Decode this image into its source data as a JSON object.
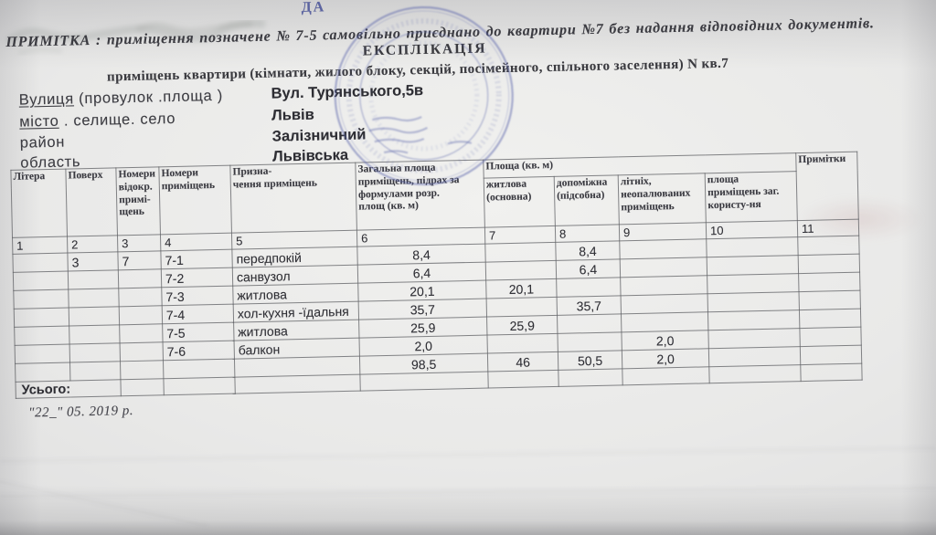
{
  "note": "ПРИМІТКА : приміщення позначене № 7-5 самовільно приєднано до квартири №7 без надання відповідних документів.",
  "title": "ЕКСПЛІКАЦІЯ",
  "subtitle": "приміщень квартири (кімнати, жилого блоку, секцій, посімейного, спільного заселення) N кв.7",
  "address": {
    "street_label_main": "Вулиця",
    "street_label_rest": " (провулок .площа )",
    "street_value": "Вул. Турянського,5в",
    "city_label_main": "місто",
    "city_label_rest": " . селище.  село",
    "city_value": "Львів",
    "district_label": "район",
    "district_value": "Залізничний",
    "region_label": "область",
    "region_value": "Львівська"
  },
  "stamp": {
    "fragment_text": "ДА",
    "color": "#5a64ab"
  },
  "table": {
    "header": {
      "litera": "Літера",
      "poverh": "Поверх",
      "nomery_vidokr": "Номери\nвідокр.\nпримі-\nщень",
      "nomery_prym": "Номери\nприміщень",
      "pryznachennia": "Призна-\nчення приміщень",
      "zagalna": "Загальна площа\nприміщень, підрах за\nформулами розр.\nплощ (кв. м)",
      "ploshcha_group": "Площа (кв. м)",
      "zhytlova": "житлова\n(основна)",
      "dopomizhna": "допоміжна\n(підсобна)",
      "litnih": "літніх,\nнеопалюваних\nприміщень",
      "zag_koryst": "площа\nприміщень заг.\nкористу-ня",
      "prymitky": "Примітки"
    },
    "index_row": [
      "1",
      "2",
      "3",
      "4",
      "5",
      "6",
      "7",
      "8",
      "9",
      "10",
      "11"
    ],
    "rows": [
      [
        "",
        "3",
        "7",
        "7-1",
        "передпокій",
        "8,4",
        "",
        "8,4",
        "",
        "",
        ""
      ],
      [
        "",
        "",
        "",
        "7-2",
        "санвузол",
        "6,4",
        "",
        "6,4",
        "",
        "",
        ""
      ],
      [
        "",
        "",
        "",
        "7-3",
        "житлова",
        "20,1",
        "20,1",
        "",
        "",
        "",
        ""
      ],
      [
        "",
        "",
        "",
        "7-4",
        "хол-кухня -їдальня",
        "35,7",
        "",
        "35,7",
        "",
        "",
        ""
      ],
      [
        "",
        "",
        "",
        "7-5",
        "житлова",
        "25,9",
        "25,9",
        "",
        "",
        "",
        ""
      ],
      [
        "",
        "",
        "",
        "7-6",
        "балкон",
        "2,0",
        "",
        "",
        "2,0",
        "",
        ""
      ],
      [
        "",
        "",
        "",
        "",
        "",
        "98,5",
        "46",
        "50,5",
        "2,0",
        "",
        ""
      ]
    ],
    "total_label": "Усього:"
  },
  "date_line": "\"22_\" 05. 2019 р.",
  "colors": {
    "ink": "#3a3a3f",
    "stamp_blue": "#5a64ab",
    "table_line": "#8e8f90",
    "paper": "#eaeae9"
  }
}
